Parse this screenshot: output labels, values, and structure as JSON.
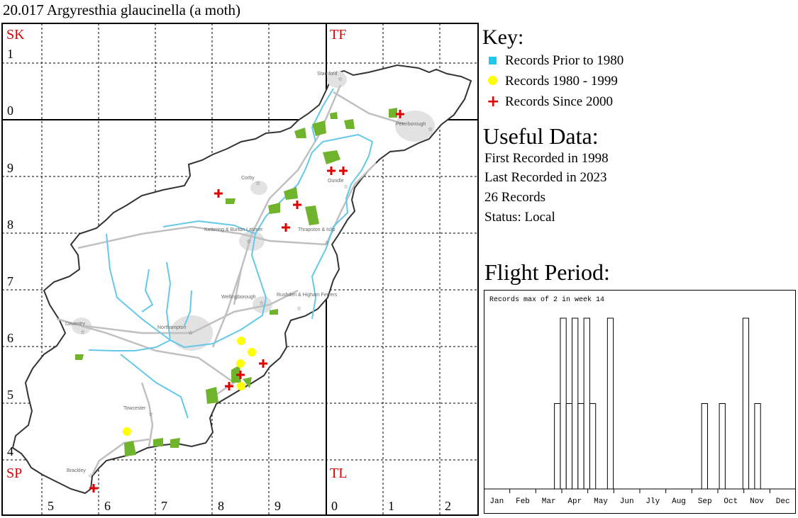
{
  "title": "20.017 Argyresthia glaucinella (a moth)",
  "map": {
    "squares": {
      "sk": "SK",
      "tf": "TF",
      "sp": "SP",
      "tl": "TL"
    },
    "left_numbers": [
      "1",
      "0",
      "9",
      "8",
      "7",
      "6",
      "5",
      "4"
    ],
    "bottom_numbers": [
      "5",
      "6",
      "7",
      "8",
      "9",
      "0",
      "1",
      "2"
    ],
    "towns": [
      "Stamford",
      "Peterborough",
      "Corby",
      "Oundle",
      "Kettering & Burton Latimer",
      "Thrapston & Islip",
      "Wellingborough",
      "Rushden & Higham Ferrers",
      "Daventry",
      "Northampton",
      "Towcester",
      "Brackley"
    ],
    "colors": {
      "border": "#333333",
      "river": "#66c8e8",
      "road": "#c0c0c0",
      "urban": "#e2e2e2",
      "woodland": "#6fb42c",
      "record_since_2000": "#e00000",
      "record_1980_1999": "#ffff00",
      "record_prior_1980": "#1ec8f0"
    }
  },
  "key": {
    "heading": "Key:",
    "items": [
      {
        "label": "Records Prior to 1980",
        "symbol": "cyan-square"
      },
      {
        "label": "Records 1980 - 1999",
        "symbol": "yellow-dot"
      },
      {
        "label": "Records Since 2000",
        "symbol": "red-cross"
      }
    ]
  },
  "useful": {
    "heading": "Useful Data:",
    "first": "First Recorded in 1998",
    "last": "Last Recorded in 2023",
    "count": "26 Records",
    "status": "Status: Local"
  },
  "flight": {
    "heading": "Flight Period:",
    "caption": "Records max of 2 in week 14",
    "months": [
      "Jan",
      "Feb",
      "Mar",
      "Apr",
      "May",
      "Jun",
      "Jly",
      "Aug",
      "Sep",
      "Oct",
      "Nov",
      "Dec"
    ]
  },
  "chart_data": {
    "type": "bar",
    "title": "Records max of 2 in week 14",
    "x": [
      13,
      14,
      15,
      16,
      17,
      18,
      19,
      22,
      38,
      41,
      45,
      47
    ],
    "values": [
      1,
      2,
      1,
      2,
      1,
      2,
      1,
      2,
      1,
      1,
      2,
      1
    ],
    "ylim": [
      0,
      2
    ],
    "xlim": [
      1,
      53
    ],
    "categories": [
      "Jan",
      "Feb",
      "Mar",
      "Apr",
      "May",
      "Jun",
      "Jly",
      "Aug",
      "Sep",
      "Oct",
      "Nov",
      "Dec"
    ]
  }
}
